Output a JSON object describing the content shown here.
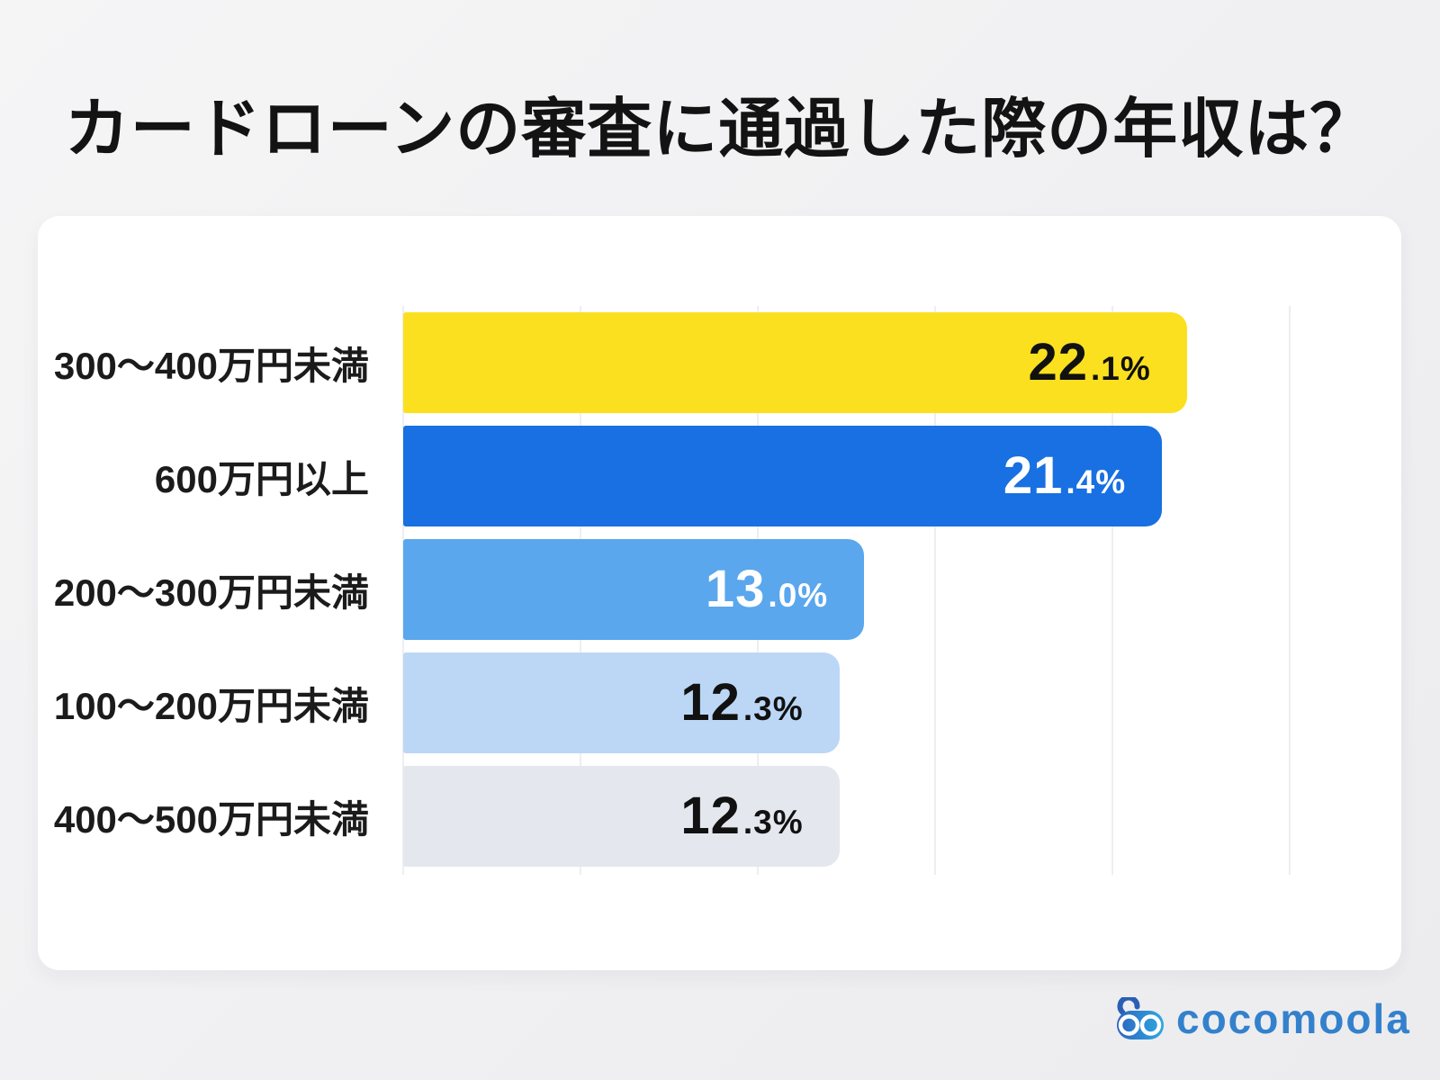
{
  "title": "カードローンの審査に通過した際の年収は？",
  "brand": {
    "name": "cocomoola",
    "icon": "cocomoola-goggles-icon",
    "wordmark_color": "#3381cd"
  },
  "chart_data": {
    "type": "bar",
    "orientation": "horizontal",
    "title": "カードローンの審査に通過した際の年収は？",
    "categories": [
      "300〜400万円未満",
      "600万円以上",
      "200〜300万円未満",
      "100〜200万円未満",
      "400〜500万円未満"
    ],
    "values": [
      22.1,
      21.4,
      13.0,
      12.3,
      12.3
    ],
    "value_labels": [
      "22.1%",
      "21.4%",
      "13.0%",
      "12.3%",
      "12.3%"
    ],
    "xlim": [
      0,
      25
    ],
    "grid_interval": 5,
    "grid": true,
    "legend": false,
    "bar_colors": [
      "#FBE01F",
      "#1870E2",
      "#5AA7ED",
      "#BCD7F6",
      "#E4E7EE"
    ],
    "value_text_colors": [
      "#111111",
      "#FFFFFF",
      "#FFFFFF",
      "#111111",
      "#111111"
    ],
    "gridline_color": "#edeef1",
    "card_background": "#FFFFFF",
    "page_background": "#F0F0F2"
  }
}
